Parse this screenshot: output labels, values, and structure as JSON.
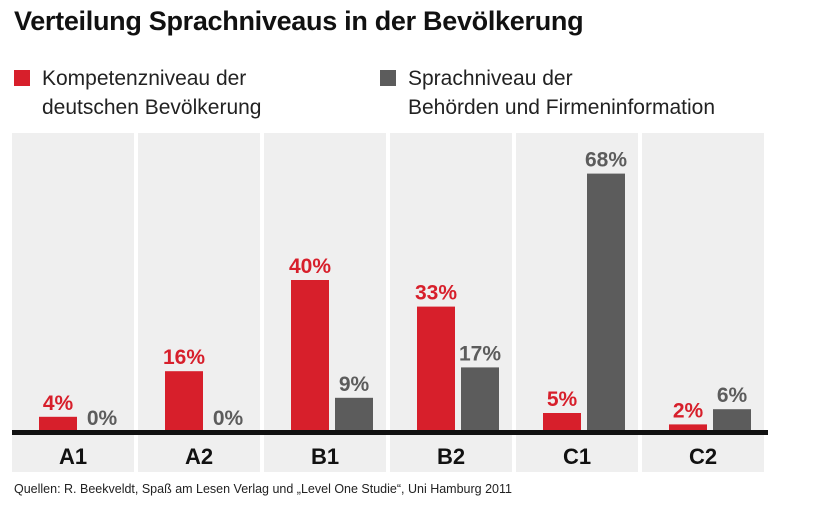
{
  "colors": {
    "series1": "#d71f2b",
    "series2": "#5c5c5c",
    "panel": "#efefef",
    "axis": "#111111"
  },
  "chart_data": {
    "type": "bar",
    "title": "Verteilung Sprachniveaus in der Bevölkerung",
    "categories": [
      "A1",
      "A2",
      "B1",
      "B2",
      "C1",
      "C2"
    ],
    "series": [
      {
        "name": "Kompetenzniveau der deutschen Bevölkerung",
        "values": [
          4,
          16,
          40,
          33,
          5,
          2
        ],
        "labels": [
          "4%",
          "16%",
          "40%",
          "33%",
          "5%",
          "2%"
        ]
      },
      {
        "name": "Sprachniveau der Behörden und Firmeninformation",
        "values": [
          0,
          0,
          9,
          17,
          68,
          6
        ],
        "labels": [
          "0%",
          "0%",
          "9%",
          "17%",
          "68%",
          "6%"
        ]
      }
    ],
    "ylim": [
      0,
      70
    ],
    "legend": "top",
    "source": "Quellen: R. Beekveldt, Spaß am Lesen Verlag und „Level One Studie“, Uni Hamburg 2011"
  }
}
